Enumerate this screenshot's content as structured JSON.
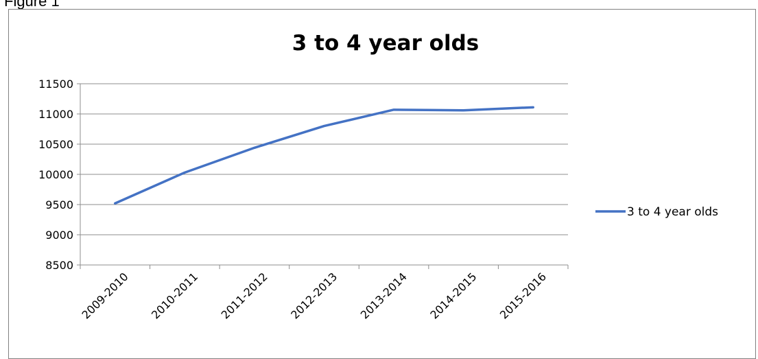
{
  "figure": {
    "label": "Figure 1"
  },
  "chart_data": {
    "type": "line",
    "title": "3 to 4 year olds",
    "categories": [
      "2009-2010",
      "2010-2011",
      "2011-2012",
      "2012-2013",
      "2013-2014",
      "2014-2015",
      "2015-2016"
    ],
    "series": [
      {
        "name": "3 to 4 year olds",
        "values": [
          9520,
          10030,
          10440,
          10800,
          11070,
          11060,
          11110
        ],
        "color": "#4472C4"
      }
    ],
    "ylim": [
      8500,
      11500
    ],
    "yticks": [
      8500,
      9000,
      9500,
      10000,
      10500,
      11000,
      11500
    ],
    "xlabel": "",
    "ylabel": "",
    "grid": true,
    "legend_position": "right"
  }
}
